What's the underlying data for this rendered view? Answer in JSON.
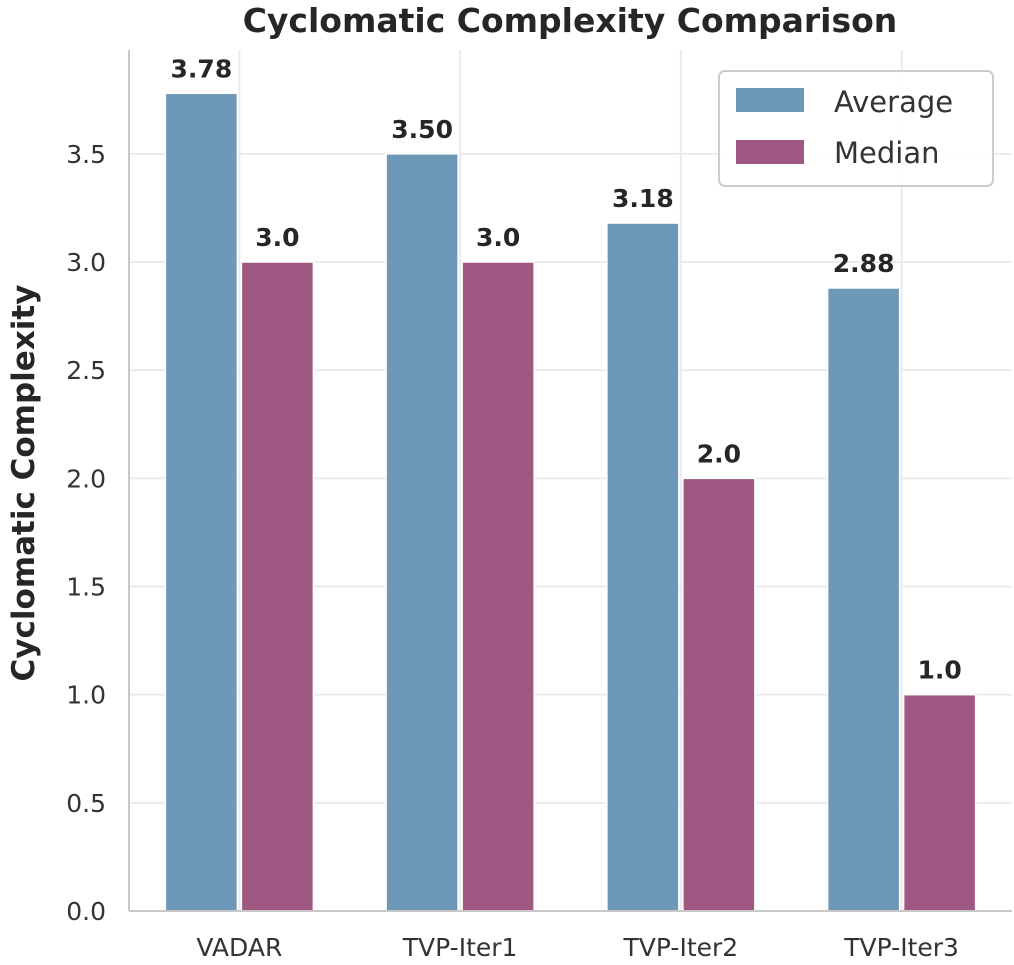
{
  "chart_data": {
    "type": "bar",
    "title": "Cyclomatic Complexity Comparison",
    "xlabel": "",
    "ylabel": "Cyclomatic Complexity",
    "categories": [
      "VADAR",
      "TVP-Iter1",
      "TVP-Iter2",
      "TVP-Iter3"
    ],
    "series": [
      {
        "name": "Average",
        "color": "#6e98b8",
        "values": [
          3.78,
          3.5,
          3.18,
          2.88
        ],
        "labels": [
          "3.78",
          "3.50",
          "3.18",
          "2.88"
        ]
      },
      {
        "name": "Median",
        "color": "#9e5882",
        "values": [
          3.0,
          3.0,
          2.0,
          1.0
        ],
        "labels": [
          "3.0",
          "3.0",
          "2.0",
          "1.0"
        ]
      }
    ],
    "ylim": [
      0,
      3.98
    ],
    "yticks": [
      "0.0",
      "0.5",
      "1.0",
      "1.5",
      "2.0",
      "2.5",
      "3.0",
      "3.5"
    ],
    "grid": true,
    "legend_position": "top-right"
  }
}
